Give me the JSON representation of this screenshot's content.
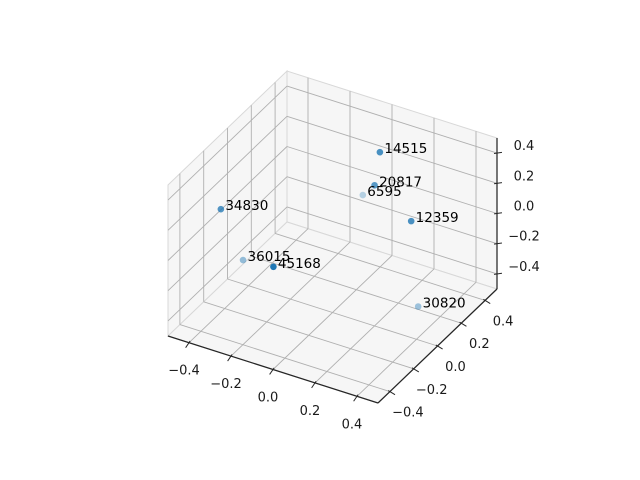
{
  "figure": {
    "kind": "matplotlib-3d-scatter-figure",
    "background_color": "#ffffff"
  },
  "chart_data": {
    "type": "scatter",
    "projection": "3d",
    "title": "",
    "xlabel": "",
    "ylabel": "",
    "zlabel": "",
    "grid": true,
    "legend": null,
    "xlim": [
      -0.5,
      0.5
    ],
    "ylim": [
      -0.5,
      0.5
    ],
    "zlim": [
      -0.5,
      0.5
    ],
    "xticks": {
      "values": [
        -0.4,
        -0.2,
        0.0,
        0.2,
        0.4
      ],
      "labels": [
        "−0.4",
        "−0.2",
        "0.0",
        "0.2",
        "0.4"
      ]
    },
    "yticks": {
      "values": [
        -0.4,
        -0.2,
        0.0,
        0.2,
        0.4
      ],
      "labels": [
        "−0.4",
        "−0.2",
        "0.0",
        "0.2",
        "0.4"
      ]
    },
    "zticks": {
      "values": [
        -0.4,
        -0.2,
        0.0,
        0.2,
        0.4
      ],
      "labels": [
        "−0.4",
        "−0.2",
        "0.0",
        "0.2",
        "0.4"
      ]
    },
    "points": [
      {
        "label": "14515",
        "x": 0.05,
        "y": 0.31,
        "z": 0.35
      },
      {
        "label": "20817",
        "x": 0.07,
        "y": 0.23,
        "z": 0.2
      },
      {
        "label": "6595",
        "x": -0.02,
        "y": 0.29,
        "z": 0.05
      },
      {
        "label": "12359",
        "x": 0.25,
        "y": 0.22,
        "z": 0.05
      },
      {
        "label": "34830",
        "x": -0.39,
        "y": -0.25,
        "z": 0.2
      },
      {
        "label": "36015",
        "x": -0.29,
        "y": -0.24,
        "z": -0.1
      },
      {
        "label": "45168",
        "x": -0.1,
        "y": -0.32,
        "z": 0.0
      },
      {
        "label": "30820",
        "x": 0.34,
        "y": 0.12,
        "z": -0.4
      }
    ],
    "colors": {
      "marker": "#1f77b4",
      "grid_line": "#b0b0b0",
      "pane_fill": "#f6f6f6",
      "pane_edge": "#d8d8d8",
      "axis_line": "#262626",
      "tick_text": "#1a1a1a",
      "point_label_text": "#000000"
    }
  }
}
